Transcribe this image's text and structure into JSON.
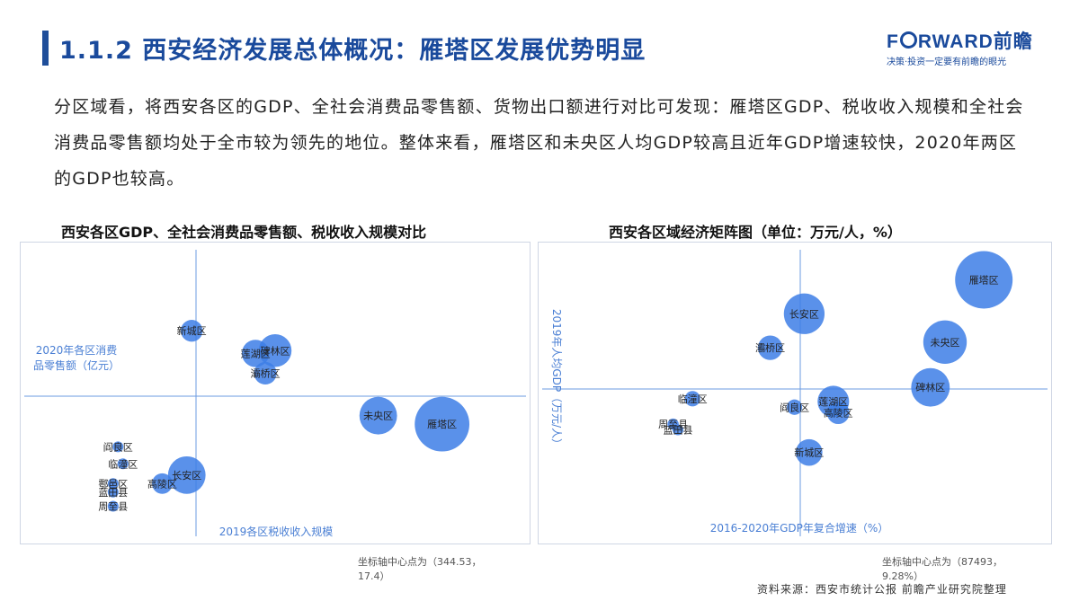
{
  "header": {
    "title": "1.1.2 西安经济发展总体概况：雁塔区发展优势明显",
    "logo_pre": "F",
    "logo_post": "RWARD前瞻",
    "logo_tagline": "决策·投资一定要有前瞻的眼光"
  },
  "intro": "分区域看，将西安各区的GDP、全社会消费品零售额、货物出口额进行对比可发现：雁塔区GDP、税收收入规模和全社会消费品零售额均处于全市较为领先的地位。整体来看，雁塔区和未央区人均GDP较高且近年GDP增速较快，2020年两区的GDP也较高。",
  "colors": {
    "bubble": "#3d7ee6",
    "axis": "#6b9be0",
    "axis_label": "#4a7fd4",
    "title": "#1a4a9c"
  },
  "chart_data": [
    {
      "type": "scatter",
      "title": "西安各区GDP、全社会消费品零售额、税收收入规模对比",
      "xlabel": "2019各区税收收入规模",
      "ylabel": "2020年各区消费品零售额（亿元）",
      "center_note": "坐标轴中心点为（344.53，\n17.4）",
      "points": [
        {
          "name": "新城区",
          "x": 0.33,
          "y": 0.72,
          "size": 0.32
        },
        {
          "name": "碑林区",
          "x": 0.5,
          "y": 0.65,
          "size": 0.48
        },
        {
          "name": "莲湖区",
          "x": 0.46,
          "y": 0.64,
          "size": 0.4
        },
        {
          "name": "灞桥区",
          "x": 0.48,
          "y": 0.57,
          "size": 0.33
        },
        {
          "name": "未央区",
          "x": 0.71,
          "y": 0.42,
          "size": 0.55
        },
        {
          "name": "雁塔区",
          "x": 0.84,
          "y": 0.39,
          "size": 0.8
        },
        {
          "name": "阎良区",
          "x": 0.18,
          "y": 0.31,
          "size": 0.14
        },
        {
          "name": "临潼区",
          "x": 0.19,
          "y": 0.25,
          "size": 0.14
        },
        {
          "name": "长安区",
          "x": 0.32,
          "y": 0.21,
          "size": 0.55
        },
        {
          "name": "高陵区",
          "x": 0.27,
          "y": 0.18,
          "size": 0.3
        },
        {
          "name": "鄠邑区",
          "x": 0.17,
          "y": 0.18,
          "size": 0.14
        },
        {
          "name": "蓝田县",
          "x": 0.17,
          "y": 0.15,
          "size": 0.12
        },
        {
          "name": "周至县",
          "x": 0.17,
          "y": 0.1,
          "size": 0.1
        }
      ]
    },
    {
      "type": "scatter",
      "title": "西安各区域经济矩阵图（单位：万元/人，%）",
      "xlabel": "2016-2020年GDP年复合增速（%）",
      "ylabel": "2019年人均GDP（万元/人）",
      "center_note": "坐标轴中心点为（87493，\n9.28%）",
      "points": [
        {
          "name": "雁塔区",
          "x": 0.88,
          "y": 0.9,
          "size": 0.82
        },
        {
          "name": "长安区",
          "x": 0.51,
          "y": 0.78,
          "size": 0.58
        },
        {
          "name": "未央区",
          "x": 0.8,
          "y": 0.68,
          "size": 0.62
        },
        {
          "name": "灞桥区",
          "x": 0.44,
          "y": 0.66,
          "size": 0.35
        },
        {
          "name": "碑林区",
          "x": 0.77,
          "y": 0.52,
          "size": 0.55
        },
        {
          "name": "莲湖区",
          "x": 0.57,
          "y": 0.47,
          "size": 0.45
        },
        {
          "name": "高陵区",
          "x": 0.58,
          "y": 0.43,
          "size": 0.32
        },
        {
          "name": "临潼区",
          "x": 0.28,
          "y": 0.48,
          "size": 0.22
        },
        {
          "name": "阎良区",
          "x": 0.49,
          "y": 0.45,
          "size": 0.22
        },
        {
          "name": "周至县",
          "x": 0.24,
          "y": 0.39,
          "size": 0.16
        },
        {
          "name": "蓝田县",
          "x": 0.25,
          "y": 0.37,
          "size": 0.14
        },
        {
          "name": "新城区",
          "x": 0.52,
          "y": 0.29,
          "size": 0.38
        }
      ]
    }
  ],
  "footer": {
    "source": "资料来源：西安市统计公报 前瞻产业研究院整理"
  }
}
